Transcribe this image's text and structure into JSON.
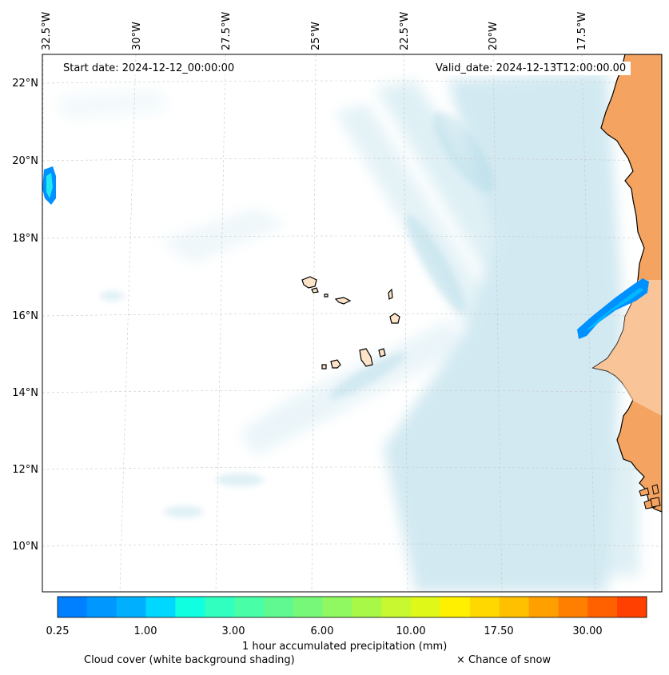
{
  "map": {
    "region": "Cabo Verde and West African coast",
    "start_date": "Start date: 2024-12-12_00:00:00",
    "valid_date": "Valid_date: 2024-12-13T12:00:00.00",
    "longitude_labels": [
      "32.5°W",
      "30°W",
      "27.5°W",
      "25°W",
      "22.5°W",
      "20°W",
      "17.5°W"
    ],
    "latitude_labels": [
      "22°N",
      "20°N",
      "18°N",
      "16°N",
      "14°N",
      "12°N",
      "10°N"
    ],
    "gridlines": true,
    "colors": {
      "land": "#f4a460",
      "island_fill": "#fde3c8",
      "cloud": "#add8e6",
      "coastline": "#000000"
    }
  },
  "colorbar": {
    "label": "1 hour accumulated precipitation (mm)",
    "tick_labels": [
      "0.25",
      "1.00",
      "3.00",
      "6.00",
      "10.00",
      "17.50",
      "30.00"
    ],
    "colors": [
      "#0080ff",
      "#0098ff",
      "#00b0ff",
      "#00d8ff",
      "#10ffe0",
      "#30ffc0",
      "#48ffa8",
      "#60f890",
      "#78f878",
      "#90f860",
      "#a8f848",
      "#c8f830",
      "#e0f818",
      "#fff000",
      "#ffd800",
      "#ffc000",
      "#ffa000",
      "#ff8000",
      "#ff6000",
      "#ff4000"
    ]
  },
  "legend": {
    "cloud_cover": "Cloud cover (white background shading)",
    "snow": "× Chance of snow"
  }
}
